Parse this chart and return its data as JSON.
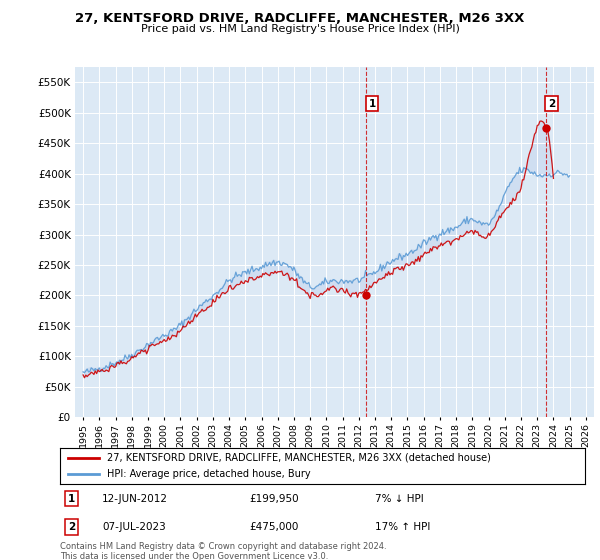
{
  "title": "27, KENTSFORD DRIVE, RADCLIFFE, MANCHESTER, M26 3XX",
  "subtitle": "Price paid vs. HM Land Registry's House Price Index (HPI)",
  "legend_line1": "27, KENTSFORD DRIVE, RADCLIFFE, MANCHESTER, M26 3XX (detached house)",
  "legend_line2": "HPI: Average price, detached house, Bury",
  "annotation1_date": "12-JUN-2012",
  "annotation1_price": "£199,950",
  "annotation1_hpi": "7% ↓ HPI",
  "annotation2_date": "07-JUL-2023",
  "annotation2_price": "£475,000",
  "annotation2_hpi": "17% ↑ HPI",
  "footer": "Contains HM Land Registry data © Crown copyright and database right 2024.\nThis data is licensed under the Open Government Licence v3.0.",
  "red_color": "#cc0000",
  "blue_color": "#5b9bd5",
  "fill_color": "#ccdcf0",
  "background_color": "#dce9f5",
  "grid_color": "#ffffff",
  "ylim": [
    0,
    575000
  ],
  "yticks": [
    0,
    50000,
    100000,
    150000,
    200000,
    250000,
    300000,
    350000,
    400000,
    450000,
    500000,
    550000
  ],
  "xlim_start": 1994.5,
  "xlim_end": 2026.5,
  "sale1_x": 2012.44,
  "sale1_y": 199950,
  "sale2_x": 2023.52,
  "sale2_y": 475000,
  "hpi_seed": 42,
  "hpi_base_years": [
    1995,
    1996,
    1997,
    1998,
    1999,
    2000,
    2001,
    2002,
    2003,
    2004,
    2005,
    2006,
    2007,
    2008,
    2009,
    2010,
    2011,
    2012,
    2013,
    2014,
    2015,
    2016,
    2017,
    2018,
    2019,
    2020,
    2021,
    2022,
    2023,
    2024,
    2025
  ],
  "hpi_base_values": [
    73000,
    80000,
    90000,
    103000,
    120000,
    135000,
    152000,
    178000,
    200000,
    225000,
    238000,
    248000,
    255000,
    242000,
    215000,
    222000,
    224000,
    226000,
    238000,
    256000,
    268000,
    285000,
    302000,
    312000,
    325000,
    318000,
    365000,
    405000,
    398000,
    400000,
    395000
  ],
  "red_base_years": [
    1995,
    1996,
    1997,
    1998,
    1999,
    2000,
    2001,
    2002,
    2003,
    2004,
    2005,
    2006,
    2007,
    2008,
    2009,
    2010,
    2011,
    2012,
    2013,
    2014,
    2015,
    2016,
    2017,
    2018,
    2019,
    2020,
    2021,
    2022,
    2023,
    2024
  ],
  "red_base_values": [
    68000,
    74000,
    84000,
    96000,
    111000,
    125000,
    141000,
    166000,
    186000,
    210000,
    222000,
    231000,
    238000,
    226000,
    200000,
    207000,
    209000,
    199950,
    222000,
    238000,
    250000,
    266000,
    282000,
    291000,
    304000,
    297000,
    341000,
    378000,
    475000,
    395000
  ]
}
